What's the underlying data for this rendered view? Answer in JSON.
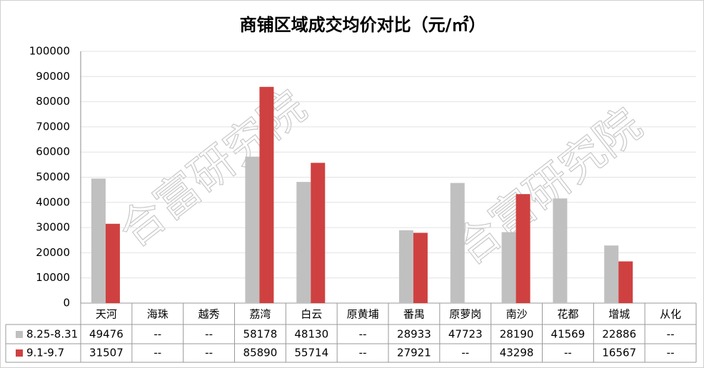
{
  "chart_data": {
    "type": "bar",
    "title": "商铺区域成交均价对比（元/㎡）",
    "watermark": "合富研究院",
    "categories": [
      "天河",
      "海珠",
      "越秀",
      "荔湾",
      "白云",
      "原黄埔",
      "番禺",
      "原萝岗",
      "南沙",
      "花都",
      "增城",
      "从化"
    ],
    "series": [
      {
        "name": "8.25-8.31",
        "color": "#c0c0c0",
        "values": [
          49476,
          null,
          null,
          58178,
          48130,
          null,
          28933,
          47723,
          28190,
          41569,
          22886,
          null
        ]
      },
      {
        "name": "9.1-9.7",
        "color": "#cf4140",
        "values": [
          31507,
          null,
          null,
          85890,
          55714,
          null,
          27921,
          null,
          43298,
          null,
          16567,
          null
        ]
      }
    ],
    "na_label": "--",
    "ylim": [
      0,
      100000
    ],
    "yticks": [
      0,
      10000,
      20000,
      30000,
      40000,
      50000,
      60000,
      70000,
      80000,
      90000,
      100000
    ],
    "grid": true
  }
}
